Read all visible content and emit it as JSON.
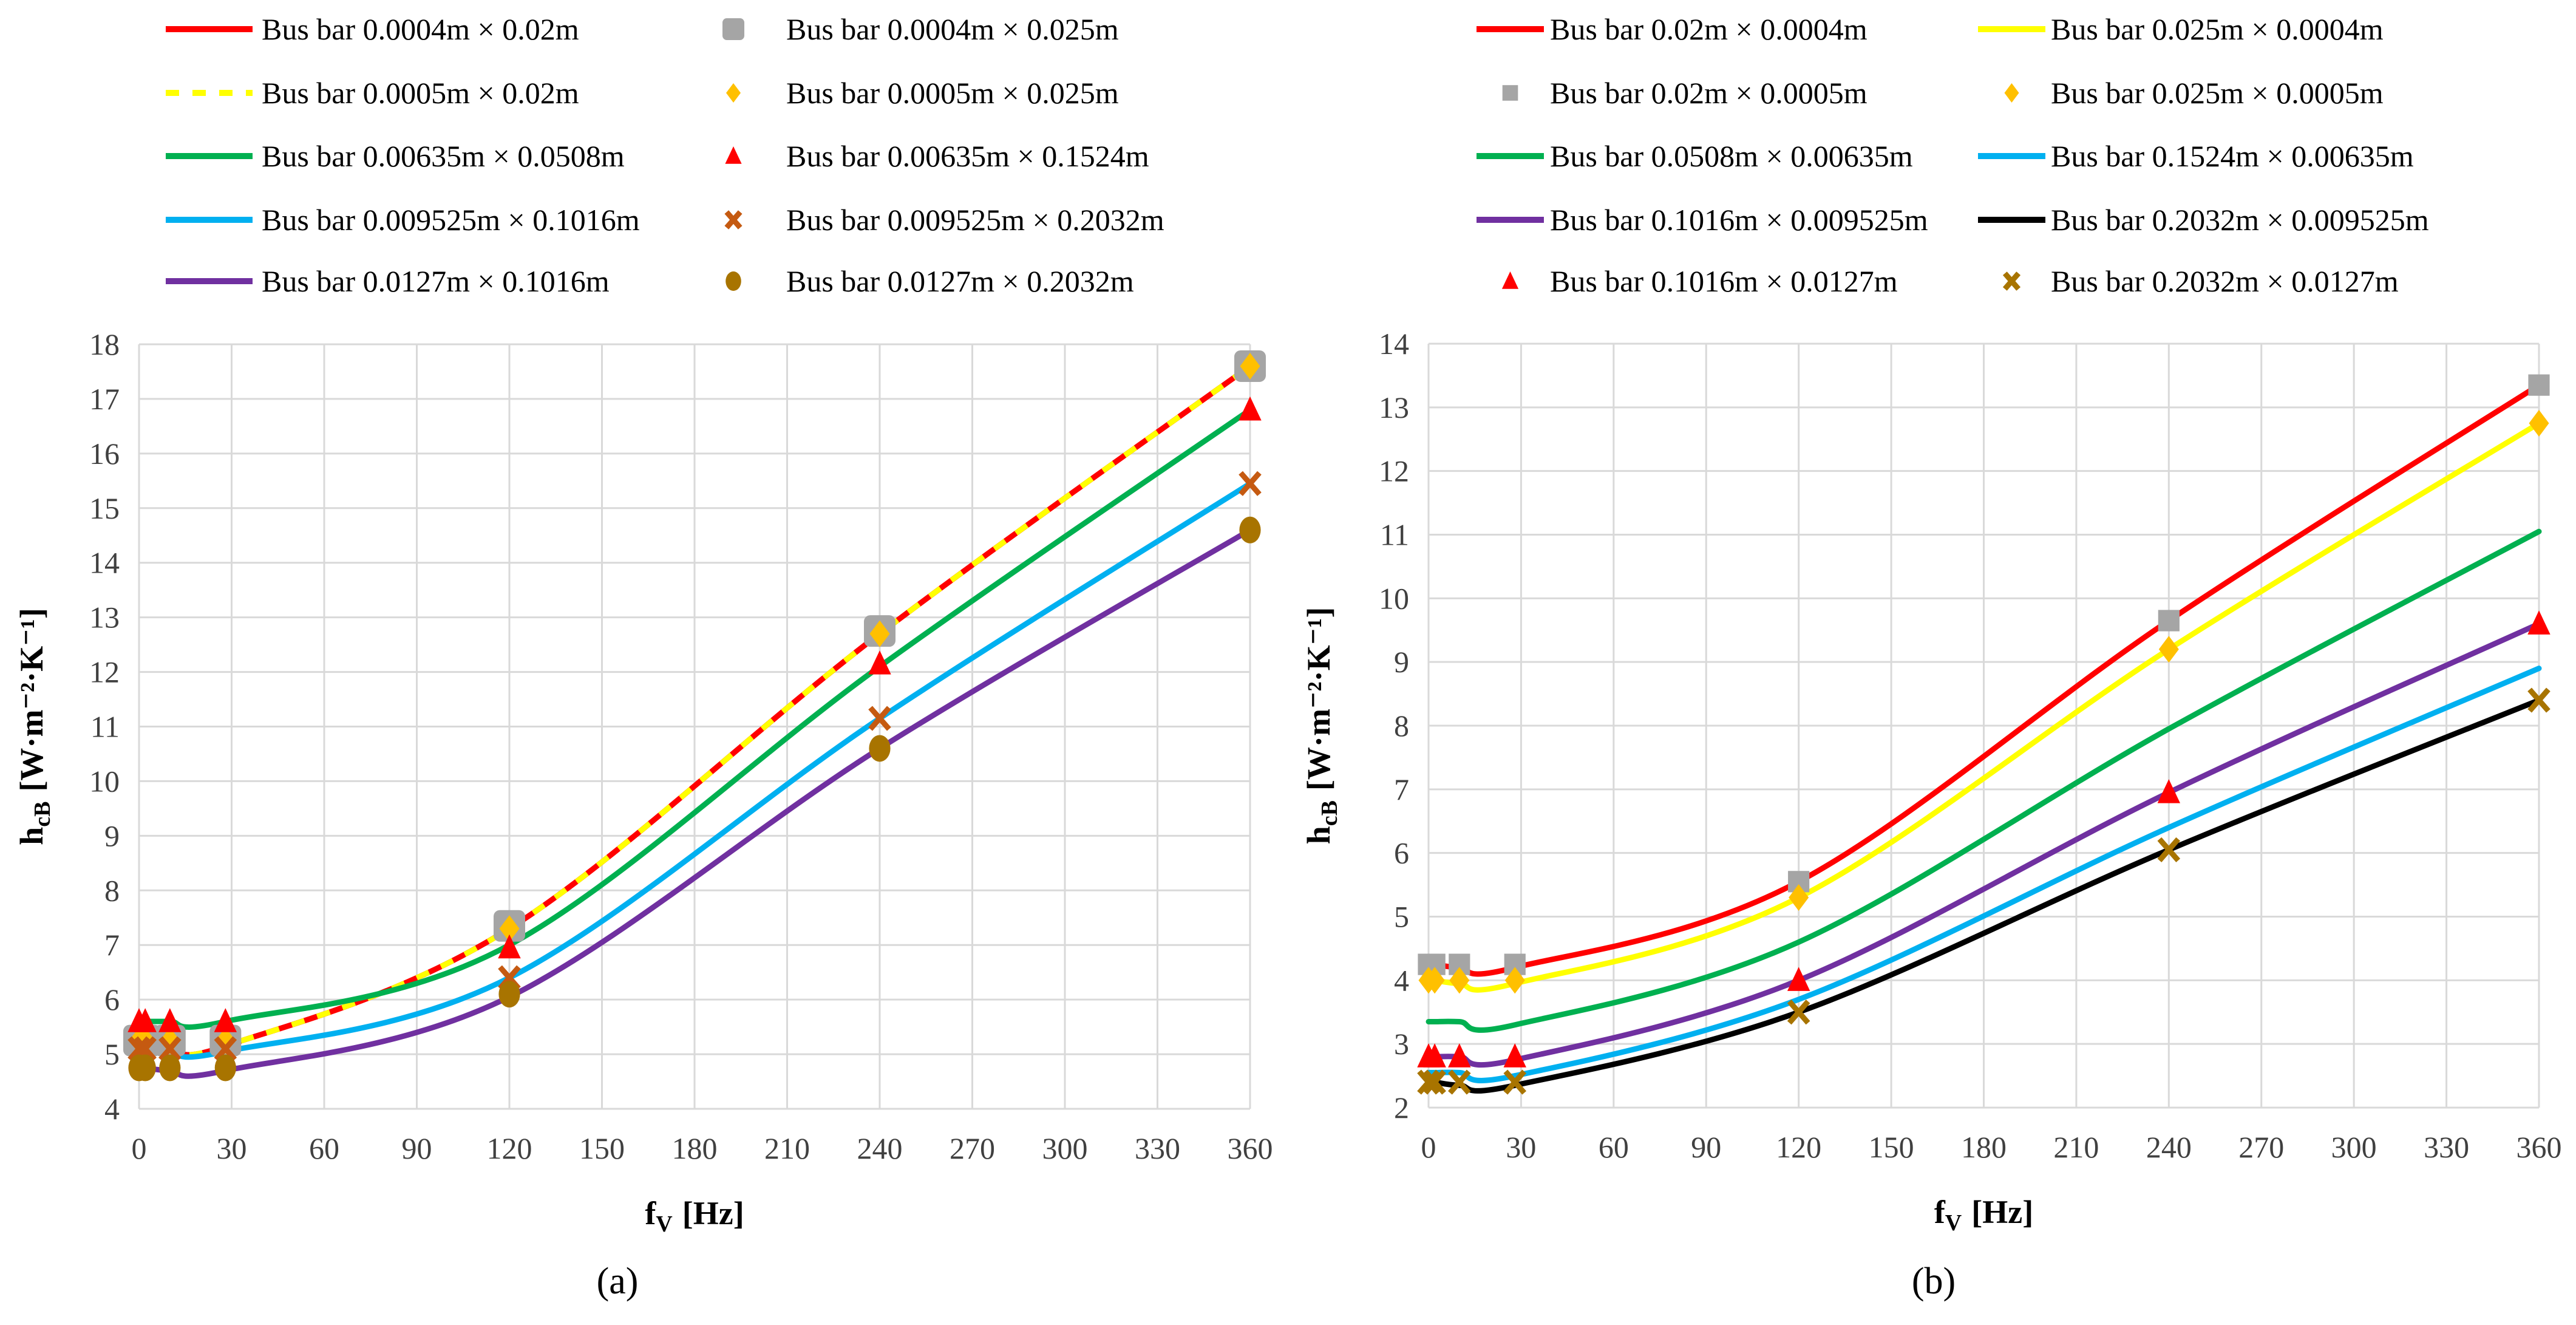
{
  "chart_data": [
    {
      "id": "a",
      "type": "line",
      "caption": "(a)",
      "xlabel": "f",
      "xlabel_sub": "V",
      "xlabel_unit": "[Hz]",
      "ylabel": "h",
      "ylabel_sub": "cB",
      "ylabel_unit": "[W·m⁻²·K⁻¹]",
      "xlim": [
        0,
        360
      ],
      "ylim": [
        4,
        18
      ],
      "xticks": [
        0,
        30,
        60,
        90,
        120,
        150,
        180,
        210,
        240,
        270,
        300,
        330,
        360
      ],
      "yticks": [
        4,
        5,
        6,
        7,
        8,
        9,
        10,
        11,
        12,
        13,
        14,
        15,
        16,
        17,
        18
      ],
      "grid": true,
      "legend_position": "top",
      "x": [
        0,
        2,
        10,
        28,
        120,
        240,
        360
      ],
      "series": [
        {
          "name": "Bus bar 0.0004m × 0.02m",
          "kind": "line",
          "color": "#ff0000",
          "values": [
            5.2,
            5.2,
            5.15,
            5.15,
            7.3,
            12.7,
            17.6
          ]
        },
        {
          "name": "Bus bar 0.0004m × 0.025m",
          "kind": "marker",
          "marker": "square-round",
          "color": "#a5a5a5",
          "values": [
            5.25,
            5.25,
            5.25,
            5.25,
            7.35,
            12.75,
            17.6
          ]
        },
        {
          "name": "Bus bar 0.0005m × 0.02m",
          "kind": "line",
          "dash": true,
          "color": "#ffff00",
          "values": [
            5.2,
            5.2,
            5.15,
            5.15,
            7.3,
            12.7,
            17.6
          ]
        },
        {
          "name": "Bus bar 0.0005m × 0.025m",
          "kind": "marker",
          "marker": "diamond",
          "color": "#ffc000",
          "values": [
            5.25,
            5.25,
            5.25,
            5.25,
            7.3,
            12.7,
            17.6
          ]
        },
        {
          "name": "Bus bar 0.00635m × 0.0508m",
          "kind": "line",
          "color": "#00b050",
          "values": [
            5.6,
            5.6,
            5.6,
            5.6,
            7.0,
            12.1,
            16.8
          ]
        },
        {
          "name": "Bus bar 0.00635m × 0.1524m",
          "kind": "marker",
          "marker": "triangle",
          "color": "#ff0000",
          "values": [
            5.6,
            5.6,
            5.6,
            5.6,
            6.95,
            12.15,
            16.8
          ]
        },
        {
          "name": "Bus bar 0.009525m × 0.1016m",
          "kind": "line",
          "color": "#00b0f0",
          "values": [
            5.1,
            5.1,
            5.05,
            5.05,
            6.4,
            11.15,
            15.45
          ]
        },
        {
          "name": "Bus bar 0.009525m × 0.2032m",
          "kind": "marker",
          "marker": "x",
          "color": "#c55a11",
          "values": [
            5.1,
            5.1,
            5.1,
            5.1,
            6.4,
            11.15,
            15.45
          ]
        },
        {
          "name": "Bus bar 0.0127m × 0.1016m",
          "kind": "line",
          "color": "#7030a0",
          "values": [
            4.75,
            4.75,
            4.7,
            4.7,
            6.05,
            10.6,
            14.6
          ]
        },
        {
          "name": "Bus bar 0.0127m × 0.2032m",
          "kind": "marker",
          "marker": "circle",
          "color": "#a87400",
          "values": [
            4.75,
            4.75,
            4.75,
            4.75,
            6.1,
            10.6,
            14.6
          ]
        }
      ]
    },
    {
      "id": "b",
      "type": "line",
      "caption": "(b)",
      "xlabel": "f",
      "xlabel_sub": "V",
      "xlabel_unit": "[Hz]",
      "ylabel": "h",
      "ylabel_sub": "cB",
      "ylabel_unit": "[W·m⁻²·K⁻¹]",
      "xlim": [
        0,
        360
      ],
      "ylim": [
        2,
        14
      ],
      "xticks": [
        0,
        30,
        60,
        90,
        120,
        150,
        180,
        210,
        240,
        270,
        300,
        330,
        360
      ],
      "yticks": [
        2,
        3,
        4,
        5,
        6,
        7,
        8,
        9,
        10,
        11,
        12,
        13,
        14
      ],
      "grid": true,
      "legend_position": "top",
      "x": [
        0,
        2,
        10,
        28,
        120,
        240,
        360
      ],
      "series": [
        {
          "name": "Bus bar 0.02m × 0.0004m",
          "kind": "line",
          "color": "#ff0000",
          "values": [
            4.25,
            4.25,
            4.2,
            4.2,
            5.55,
            9.65,
            13.35
          ]
        },
        {
          "name": "Bus bar 0.025m × 0.0004m",
          "kind": "line",
          "color": "#ffff00",
          "values": [
            4.0,
            4.0,
            3.95,
            3.95,
            5.3,
            9.2,
            12.75
          ]
        },
        {
          "name": "Bus bar 0.02m × 0.0005m",
          "kind": "marker",
          "marker": "square",
          "color": "#a5a5a5",
          "values": [
            4.25,
            4.25,
            4.25,
            4.25,
            5.55,
            9.65,
            13.35
          ]
        },
        {
          "name": "Bus bar 0.025m × 0.0005m",
          "kind": "marker",
          "marker": "diamond",
          "color": "#ffc000",
          "values": [
            4.0,
            4.0,
            4.0,
            4.0,
            5.3,
            9.2,
            12.75
          ]
        },
        {
          "name": "Bus bar 0.0508m × 0.00635m",
          "kind": "line",
          "color": "#00b050",
          "values": [
            3.35,
            3.35,
            3.35,
            3.3,
            4.6,
            7.95,
            11.05
          ]
        },
        {
          "name": "Bus bar 0.1524m × 0.00635m",
          "kind": "line",
          "color": "#00b0f0",
          "values": [
            2.55,
            2.55,
            2.55,
            2.5,
            3.7,
            6.4,
            8.9
          ]
        },
        {
          "name": "Bus bar 0.1016m × 0.009525m",
          "kind": "line",
          "color": "#7030a0",
          "values": [
            2.8,
            2.8,
            2.8,
            2.75,
            4.0,
            6.95,
            9.6
          ]
        },
        {
          "name": "Bus bar 0.2032m × 0.009525m",
          "kind": "line",
          "color": "#000000",
          "values": [
            2.4,
            2.4,
            2.35,
            2.35,
            3.5,
            6.05,
            8.4
          ]
        },
        {
          "name": "Bus bar 0.1016m × 0.0127m",
          "kind": "marker",
          "marker": "triangle",
          "color": "#ff0000",
          "values": [
            2.8,
            2.8,
            2.8,
            2.8,
            4.0,
            6.95,
            9.6
          ]
        },
        {
          "name": "Bus bar 0.2032m × 0.0127m",
          "kind": "marker",
          "marker": "x",
          "color": "#a87400",
          "values": [
            2.4,
            2.4,
            2.4,
            2.4,
            3.5,
            6.05,
            8.4
          ]
        }
      ]
    }
  ]
}
